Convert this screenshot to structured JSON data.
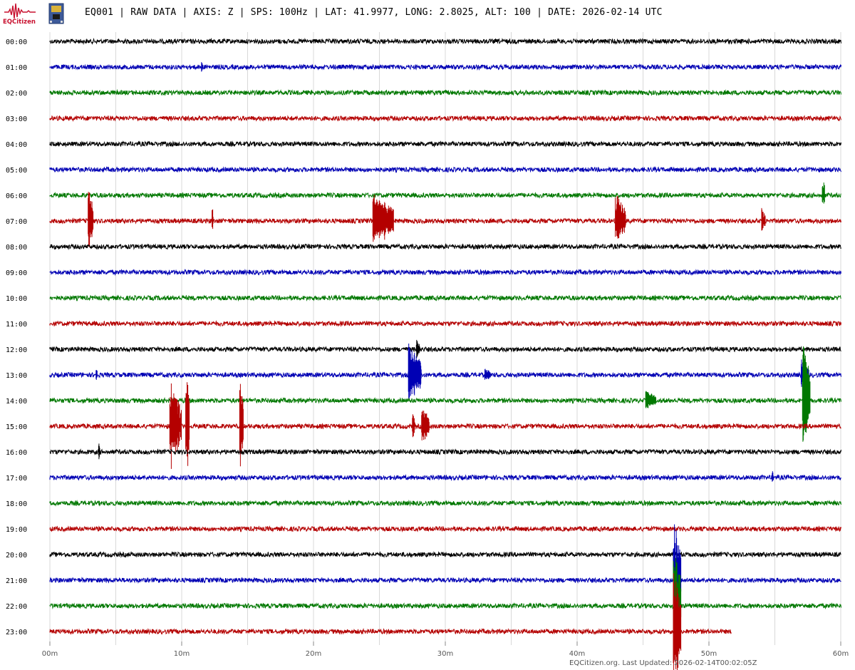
{
  "header": {
    "logo_text": "EQCitizen",
    "title": "EQ001 | RAW DATA | AXIS: Z | SPS: 100Hz | LAT: 41.9977, LONG: 2.8025, ALT: 100 | DATE: 2026-02-14 UTC"
  },
  "footer": {
    "text": "EQCitizen.org. Last Updated: 2026-02-14T00:02:05Z"
  },
  "colors": {
    "black": "#000000",
    "blue": "#0000b4",
    "green": "#007800",
    "red": "#b40000",
    "grid": "#d8d8d8",
    "brand": "#c8102e"
  },
  "chart_data": {
    "type": "line",
    "title": "",
    "xlabel": "",
    "ylabel": "",
    "xlim_minutes": [
      0,
      60
    ],
    "x_ticks": [
      "00m",
      "10m",
      "20m",
      "30m",
      "40m",
      "50m",
      "60m"
    ],
    "grid": "vertical minor lines every 5m",
    "color_cycle": [
      "black",
      "blue",
      "green",
      "red"
    ],
    "rows": [
      {
        "label": "00:00",
        "end_min": 60,
        "events": []
      },
      {
        "label": "01:00",
        "end_min": 60,
        "events": [
          {
            "min": 11.5,
            "amp": 12,
            "dur": 0.1
          }
        ]
      },
      {
        "label": "02:00",
        "end_min": 60,
        "events": []
      },
      {
        "label": "03:00",
        "end_min": 60,
        "events": []
      },
      {
        "label": "04:00",
        "end_min": 60,
        "events": []
      },
      {
        "label": "05:00",
        "end_min": 60,
        "events": []
      },
      {
        "label": "06:00",
        "end_min": 60,
        "events": [
          {
            "min": 58.6,
            "amp": 30,
            "dur": 0.2
          }
        ]
      },
      {
        "label": "07:00",
        "end_min": 60,
        "events": [
          {
            "min": 2.9,
            "amp": 50,
            "dur": 0.4
          },
          {
            "min": 12.3,
            "amp": 25,
            "dur": 0.1
          },
          {
            "min": 24.5,
            "amp": 40,
            "dur": 1.6
          },
          {
            "min": 42.9,
            "amp": 40,
            "dur": 0.8
          },
          {
            "min": 54.0,
            "amp": 20,
            "dur": 0.3
          }
        ]
      },
      {
        "label": "08:00",
        "end_min": 60,
        "events": []
      },
      {
        "label": "09:00",
        "end_min": 60,
        "events": []
      },
      {
        "label": "10:00",
        "end_min": 60,
        "events": []
      },
      {
        "label": "11:00",
        "end_min": 60,
        "events": []
      },
      {
        "label": "12:00",
        "end_min": 60,
        "events": [
          {
            "min": 27.8,
            "amp": 15,
            "dur": 0.3
          }
        ]
      },
      {
        "label": "13:00",
        "end_min": 60,
        "events": [
          {
            "min": 3.5,
            "amp": 12,
            "dur": 0.1
          },
          {
            "min": 27.2,
            "amp": 45,
            "dur": 1.0
          },
          {
            "min": 33.0,
            "amp": 10,
            "dur": 0.5
          },
          {
            "min": 57.0,
            "amp": 30,
            "dur": 0.6
          }
        ]
      },
      {
        "label": "14:00",
        "end_min": 60,
        "events": [
          {
            "min": 45.2,
            "amp": 15,
            "dur": 0.8
          },
          {
            "min": 57.1,
            "amp": 90,
            "dur": 0.6
          }
        ]
      },
      {
        "label": "15:00",
        "end_min": 60,
        "events": [
          {
            "min": 9.1,
            "amp": 65,
            "dur": 0.9
          },
          {
            "min": 10.3,
            "amp": 90,
            "dur": 0.3
          },
          {
            "min": 14.4,
            "amp": 90,
            "dur": 0.3
          },
          {
            "min": 27.5,
            "amp": 20,
            "dur": 0.2
          },
          {
            "min": 28.2,
            "amp": 30,
            "dur": 0.6
          }
        ]
      },
      {
        "label": "16:00",
        "end_min": 60,
        "events": [
          {
            "min": 3.7,
            "amp": 18,
            "dur": 0.1
          }
        ]
      },
      {
        "label": "17:00",
        "end_min": 60,
        "events": [
          {
            "min": 54.8,
            "amp": 14,
            "dur": 0.1
          }
        ]
      },
      {
        "label": "18:00",
        "end_min": 60,
        "events": []
      },
      {
        "label": "19:00",
        "end_min": 60,
        "events": []
      },
      {
        "label": "20:00",
        "end_min": 60,
        "events": []
      },
      {
        "label": "21:00",
        "end_min": 60,
        "events": [
          {
            "min": 47.3,
            "amp": 90,
            "dur": 0.6
          }
        ]
      },
      {
        "label": "22:00",
        "end_min": 60,
        "events": [
          {
            "min": 47.3,
            "amp": 90,
            "dur": 0.6
          }
        ]
      },
      {
        "label": "23:00",
        "end_min": 51.7,
        "events": [
          {
            "min": 47.3,
            "amp": 90,
            "dur": 0.6
          }
        ]
      }
    ]
  }
}
